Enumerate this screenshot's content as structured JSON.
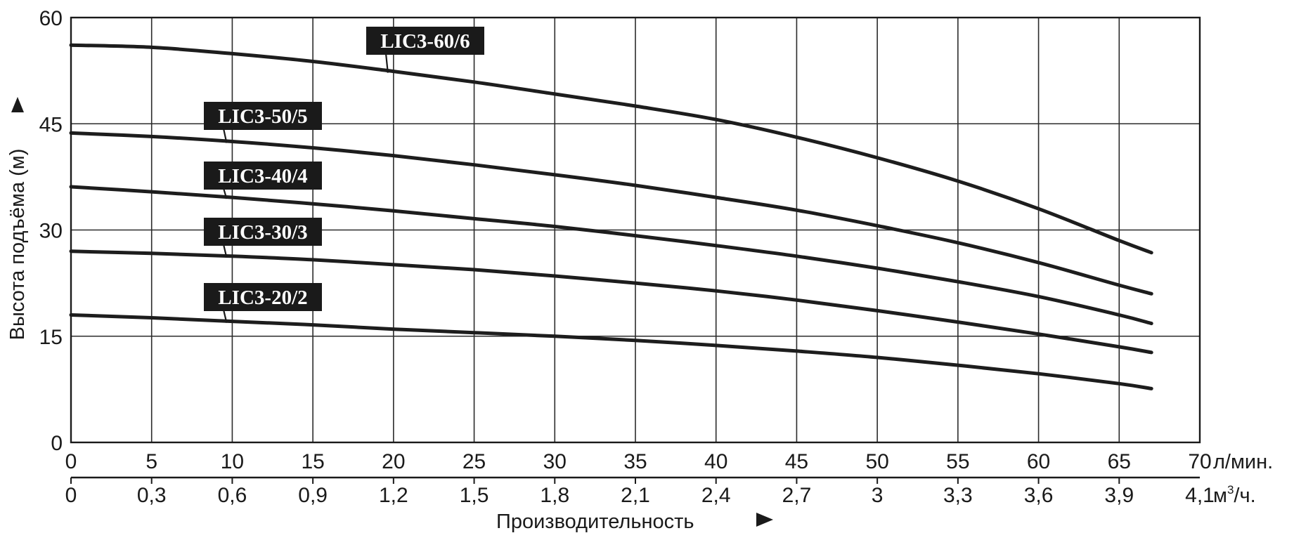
{
  "chart_data": {
    "type": "line",
    "ylabel": "Высота подъёма (м)",
    "xlabel": "Производительность",
    "ylim": [
      0,
      60
    ],
    "xlim": [
      0,
      70
    ],
    "yticks": [
      "0",
      "15",
      "30",
      "45",
      "60"
    ],
    "yticks_values": [
      0,
      15,
      30,
      45,
      60
    ],
    "xticks": [
      "0",
      "5",
      "10",
      "15",
      "20",
      "25",
      "30",
      "35",
      "40",
      "45",
      "50",
      "55",
      "60",
      "65",
      "70"
    ],
    "xticks_values": [
      0,
      5,
      10,
      15,
      20,
      25,
      30,
      35,
      40,
      45,
      50,
      55,
      60,
      65,
      70
    ],
    "x_unit": "л/мин.",
    "x2_ticks": [
      "0",
      "0,3",
      "0,6",
      "0,9",
      "1,2",
      "1,5",
      "1,8",
      "2,1",
      "2,4",
      "2,7",
      "3",
      "3,3",
      "3,6",
      "3,9",
      "4,1"
    ],
    "x2_unit_main": "м",
    "x2_unit_sup": "3",
    "x2_unit_tail": "/ч.",
    "grid": true,
    "series": [
      {
        "name": "LIC3-60/6",
        "x": [
          0,
          5,
          10,
          15,
          20,
          25,
          30,
          35,
          40,
          45,
          50,
          55,
          60,
          65,
          67
        ],
        "y": [
          56.1,
          55.8,
          54.9,
          53.8,
          52.4,
          50.9,
          49.2,
          47.5,
          45.6,
          43.1,
          40.2,
          36.9,
          33.0,
          28.5,
          26.8
        ]
      },
      {
        "name": "LIC3-50/5",
        "x": [
          0,
          5,
          10,
          15,
          20,
          25,
          30,
          35,
          40,
          45,
          50,
          55,
          60,
          65,
          67
        ],
        "y": [
          43.7,
          43.2,
          42.5,
          41.6,
          40.5,
          39.2,
          37.8,
          36.3,
          34.6,
          32.8,
          30.6,
          28.2,
          25.4,
          22.2,
          21.0
        ]
      },
      {
        "name": "LIC3-40/4",
        "x": [
          0,
          5,
          10,
          15,
          20,
          25,
          30,
          35,
          40,
          45,
          50,
          55,
          60,
          65,
          67
        ],
        "y": [
          36.1,
          35.4,
          34.6,
          33.7,
          32.7,
          31.6,
          30.5,
          29.2,
          27.8,
          26.3,
          24.6,
          22.7,
          20.6,
          18.0,
          16.8
        ]
      },
      {
        "name": "LIC3-30/3",
        "x": [
          0,
          5,
          10,
          15,
          20,
          25,
          30,
          35,
          40,
          45,
          50,
          55,
          60,
          65,
          67
        ],
        "y": [
          27.0,
          26.7,
          26.3,
          25.8,
          25.1,
          24.4,
          23.5,
          22.5,
          21.4,
          20.1,
          18.6,
          17.0,
          15.3,
          13.5,
          12.7
        ]
      },
      {
        "name": "LIC3-20/2",
        "x": [
          0,
          5,
          10,
          15,
          20,
          25,
          30,
          35,
          40,
          45,
          50,
          55,
          60,
          65,
          67
        ],
        "y": [
          18.0,
          17.6,
          17.1,
          16.6,
          16.0,
          15.5,
          15.0,
          14.4,
          13.7,
          12.9,
          12.0,
          10.9,
          9.7,
          8.3,
          7.6
        ]
      }
    ]
  }
}
